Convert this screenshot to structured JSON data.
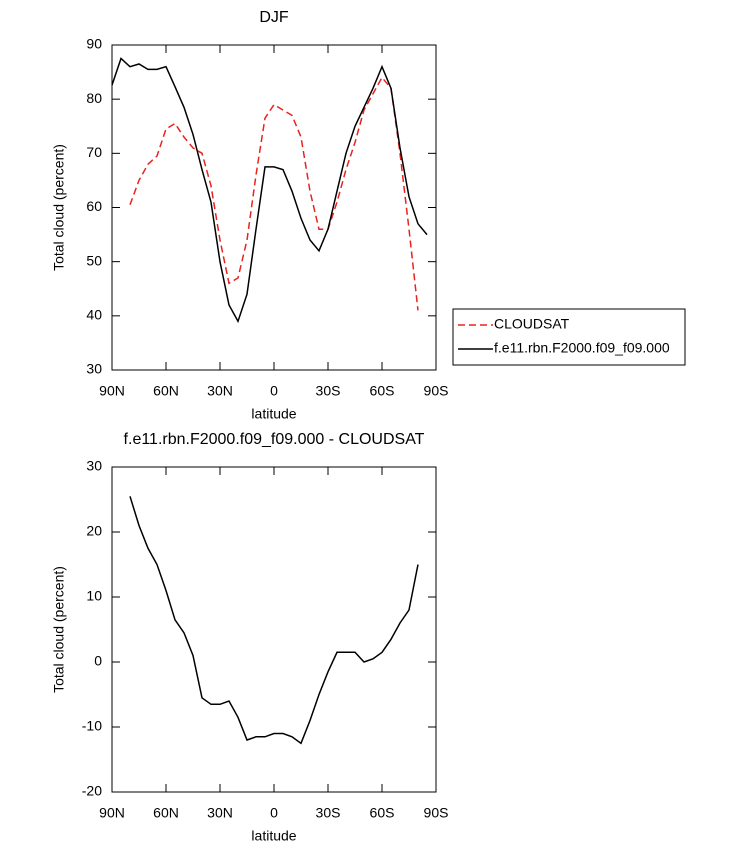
{
  "chart_data": [
    {
      "type": "line",
      "title": "DJF",
      "xlabel": "latitude",
      "ylabel": "Total cloud (percent)",
      "x": [
        90,
        85,
        80,
        75,
        70,
        65,
        60,
        55,
        50,
        45,
        40,
        35,
        30,
        25,
        20,
        15,
        10,
        5,
        0,
        -5,
        -10,
        -15,
        -20,
        -25,
        -30,
        -35,
        -40,
        -45,
        -50,
        -55,
        -60,
        -65,
        -70,
        -75,
        -80,
        -85,
        -90
      ],
      "xlim": [
        90,
        -90
      ],
      "xticks": [
        {
          "value": 90,
          "label": "90N"
        },
        {
          "value": 60,
          "label": "60N"
        },
        {
          "value": 30,
          "label": "30N"
        },
        0,
        {
          "value": -30,
          "label": "30S"
        },
        {
          "value": -60,
          "label": "60S"
        },
        {
          "value": -90,
          "label": "90S"
        }
      ],
      "ylim": [
        30,
        90
      ],
      "yticks": [
        30,
        40,
        50,
        60,
        70,
        80,
        90
      ],
      "legend": "right",
      "series": [
        {
          "name": "CLOUDSAT",
          "color": "#e8231f",
          "linestyle": "dashed",
          "values": [
            null,
            null,
            60.5,
            65,
            68,
            69.5,
            74.5,
            75.5,
            73,
            71,
            70,
            64,
            54,
            46,
            47,
            54,
            66,
            76.5,
            79,
            78,
            77,
            73,
            63,
            56,
            56,
            61,
            67,
            72,
            78,
            81,
            84,
            82,
            70,
            56,
            41,
            null,
            null
          ]
        },
        {
          "name": "f.e11.rbn.F2000.f09_f09.000",
          "color": "#000000",
          "linestyle": "solid",
          "values": [
            82.6,
            87.5,
            86,
            86.5,
            85.5,
            85.5,
            86,
            82.3,
            78.5,
            73.5,
            67,
            61,
            50,
            42,
            39,
            44,
            56,
            67.5,
            67.5,
            67,
            63,
            58,
            54,
            52,
            56,
            63,
            70,
            75,
            78.5,
            82,
            86,
            82,
            71,
            62,
            57,
            55,
            null
          ]
        }
      ]
    },
    {
      "type": "line",
      "title": "f.e11.rbn.F2000.f09_f09.000 - CLOUDSAT",
      "xlabel": "latitude",
      "ylabel": "Total cloud (percent)",
      "x": [
        90,
        85,
        80,
        75,
        70,
        65,
        60,
        55,
        50,
        45,
        40,
        35,
        30,
        25,
        20,
        15,
        10,
        5,
        0,
        -5,
        -10,
        -15,
        -20,
        -25,
        -30,
        -35,
        -40,
        -45,
        -50,
        -55,
        -60,
        -65,
        -70,
        -75,
        -80,
        -85,
        -90
      ],
      "xlim": [
        90,
        -90
      ],
      "xticks": [
        {
          "value": 90,
          "label": "90N"
        },
        {
          "value": 60,
          "label": "60N"
        },
        {
          "value": 30,
          "label": "30N"
        },
        0,
        {
          "value": -30,
          "label": "30S"
        },
        {
          "value": -60,
          "label": "60S"
        },
        {
          "value": -90,
          "label": "90S"
        }
      ],
      "ylim": [
        -20,
        30
      ],
      "yticks": [
        -20,
        -10,
        0,
        10,
        20,
        30
      ],
      "series": [
        {
          "color": "#000000",
          "linestyle": "solid",
          "values": [
            null,
            null,
            25.5,
            21,
            17.5,
            15,
            11,
            6.5,
            4.5,
            1,
            -5.5,
            -6.5,
            -6.5,
            -6,
            -8.5,
            -12,
            -11.5,
            -11.5,
            -11,
            -11,
            -11.5,
            -12.5,
            -9,
            -5,
            -1.5,
            1.5,
            1.5,
            1.5,
            0,
            0.5,
            1.5,
            3.5,
            6,
            8,
            15,
            null,
            null
          ]
        }
      ]
    }
  ]
}
